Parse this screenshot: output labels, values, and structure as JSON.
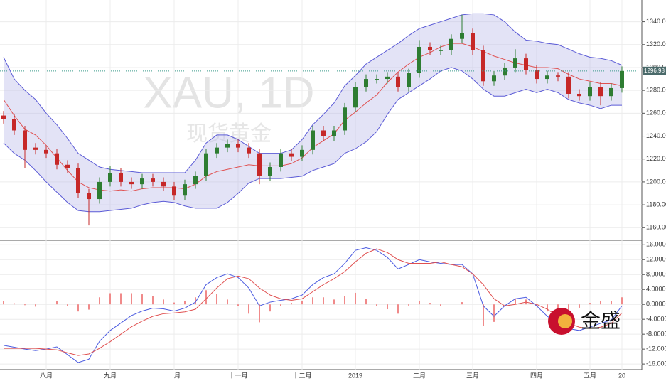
{
  "chart_data": [
    {
      "type": "candlestick",
      "watermark": "XAU, 1D",
      "watermark_sub": "现货黄金",
      "categories": [
        null,
        null,
        null,
        null,
        "八月",
        null,
        null,
        null,
        null,
        null,
        "九月",
        null,
        null,
        null,
        null,
        null,
        "十月",
        null,
        null,
        null,
        null,
        null,
        "十一月",
        null,
        null,
        null,
        null,
        null,
        "十二月",
        null,
        null,
        null,
        null,
        "2019",
        null,
        null,
        null,
        null,
        null,
        "二月",
        null,
        null,
        null,
        null,
        "三月",
        null,
        null,
        null,
        null,
        null,
        "四月",
        null,
        null,
        null,
        null,
        "五月",
        null,
        null,
        "20"
      ],
      "open": [
        1258,
        1255,
        1245,
        1230,
        1228,
        1225,
        1215,
        1212,
        1190,
        1185,
        1200,
        1208,
        1200,
        1198,
        1203,
        1200,
        1196,
        1188,
        1198,
        1205,
        1225,
        1230,
        1233,
        1230,
        1225,
        1205,
        1213,
        1225,
        1222,
        1228,
        1245,
        1240,
        1245,
        1265,
        1283,
        1290,
        1290,
        1292,
        1283,
        1295,
        1318,
        1315,
        1315,
        1325,
        1330,
        1315,
        1288,
        1293,
        1300,
        1308,
        1298,
        1290,
        1293,
        1292,
        1277,
        1275,
        1283,
        1275,
        1282
      ],
      "high": [
        1262,
        1259,
        1249,
        1234,
        1232,
        1229,
        1219,
        1216,
        1194,
        1204,
        1214,
        1212,
        1204,
        1207,
        1207,
        1204,
        1200,
        1202,
        1209,
        1229,
        1234,
        1237,
        1237,
        1234,
        1229,
        1217,
        1229,
        1229,
        1232,
        1249,
        1249,
        1249,
        1269,
        1287,
        1294,
        1294,
        1296,
        1296,
        1299,
        1324,
        1322,
        1319,
        1329,
        1346,
        1334,
        1319,
        1297,
        1304,
        1316,
        1312,
        1302,
        1297,
        1296,
        1296,
        1281,
        1287,
        1287,
        1286,
        1301
      ],
      "low": [
        1251,
        1241,
        1212,
        1224,
        1221,
        1211,
        1208,
        1186,
        1162,
        1181,
        1196,
        1196,
        1194,
        1194,
        1196,
        1192,
        1184,
        1184,
        1194,
        1201,
        1221,
        1226,
        1226,
        1221,
        1198,
        1201,
        1209,
        1218,
        1218,
        1224,
        1236,
        1236,
        1241,
        1261,
        1279,
        1286,
        1286,
        1279,
        1279,
        1291,
        1311,
        1311,
        1311,
        1321,
        1311,
        1284,
        1284,
        1289,
        1296,
        1294,
        1286,
        1286,
        1288,
        1273,
        1271,
        1271,
        1267,
        1271,
        1278
      ],
      "close": [
        1255,
        1245,
        1228,
        1228,
        1225,
        1215,
        1212,
        1190,
        1185,
        1200,
        1208,
        1200,
        1198,
        1203,
        1200,
        1196,
        1188,
        1198,
        1205,
        1225,
        1230,
        1233,
        1230,
        1225,
        1205,
        1213,
        1225,
        1222,
        1228,
        1245,
        1240,
        1245,
        1265,
        1283,
        1290,
        1290,
        1292,
        1283,
        1295,
        1318,
        1315,
        1315,
        1325,
        1330,
        1315,
        1288,
        1293,
        1300,
        1308,
        1298,
        1290,
        1293,
        1292,
        1277,
        1275,
        1283,
        1275,
        1282,
        1297
      ],
      "up_color": "#2e7d32",
      "down_color": "#c62828",
      "bands": {
        "color": "#5b5bd6",
        "middle_color": "#e05050",
        "fill": "#b8b8e8",
        "upper": [
          1309,
          1290,
          1280,
          1272,
          1260,
          1250,
          1238,
          1225,
          1219,
          1213,
          1211,
          1210,
          1209,
          1208,
          1208,
          1208,
          1208,
          1208,
          1219,
          1234,
          1241,
          1241,
          1237,
          1231,
          1225,
          1225,
          1225,
          1228,
          1237,
          1250,
          1259,
          1269,
          1284,
          1293,
          1303,
          1309,
          1315,
          1321,
          1328,
          1334,
          1337,
          1340,
          1343,
          1346,
          1347,
          1347,
          1346,
          1340,
          1331,
          1324,
          1323,
          1321,
          1320,
          1316,
          1312,
          1309,
          1308,
          1306,
          1302
        ],
        "middle": [
          1272,
          1258,
          1246,
          1241,
          1232,
          1221,
          1210,
          1200,
          1195,
          1193,
          1192,
          1193,
          1192,
          1194,
          1195,
          1195,
          1195,
          1194,
          1198,
          1205,
          1209,
          1211,
          1213,
          1215,
          1214,
          1214,
          1214,
          1216,
          1221,
          1230,
          1236,
          1242,
          1254,
          1261,
          1269,
          1276,
          1287,
          1296,
          1303,
          1309,
          1313,
          1318,
          1321,
          1321,
          1318,
          1314,
          1310,
          1307,
          1304,
          1302,
          1300,
          1300,
          1299,
          1294,
          1290,
          1288,
          1286,
          1286,
          1284
        ],
        "lower": [
          1234,
          1225,
          1219,
          1210,
          1200,
          1191,
          1182,
          1175,
          1174,
          1174,
          1175,
          1176,
          1177,
          1180,
          1182,
          1183,
          1182,
          1179,
          1177,
          1177,
          1177,
          1182,
          1190,
          1199,
          1203,
          1203,
          1203,
          1204,
          1205,
          1210,
          1213,
          1216,
          1225,
          1229,
          1235,
          1244,
          1259,
          1272,
          1278,
          1284,
          1290,
          1297,
          1300,
          1297,
          1290,
          1281,
          1275,
          1275,
          1278,
          1281,
          1278,
          1281,
          1278,
          1272,
          1269,
          1267,
          1264,
          1267,
          1267
        ]
      },
      "ylim": [
        1149,
        1359
      ],
      "yticks": [
        {
          "value": 1160,
          "label": "1160.00"
        },
        {
          "value": 1180,
          "label": "1180.00"
        },
        {
          "value": 1200,
          "label": "1200.00"
        },
        {
          "value": 1220,
          "label": "1220.00"
        },
        {
          "value": 1240,
          "label": "1240.00"
        },
        {
          "value": 1260,
          "label": "1260.00"
        },
        {
          "value": 1280,
          "label": "1280.00"
        },
        {
          "value": 1300,
          "label": "1300.00"
        },
        {
          "value": 1320,
          "label": "1320.00"
        },
        {
          "value": 1340,
          "label": "1340.00"
        }
      ],
      "last_price": {
        "value": 1296.98,
        "label": "1296.98"
      },
      "grid": true
    },
    {
      "type": "macd",
      "series": [
        {
          "color": "#4a5ae0",
          "values": [
            -11.0,
            -11.5,
            -12.0,
            -12.4,
            -12.0,
            -11.4,
            -13.5,
            -15.6,
            -14.7,
            -9.9,
            -7.0,
            -5.0,
            -3.0,
            -1.8,
            -1.0,
            -1.2,
            -1.8,
            -1.0,
            0.6,
            5.3,
            7.2,
            8.2,
            7.2,
            4.4,
            -0.4,
            0.6,
            1.1,
            1.5,
            2.5,
            5.3,
            7.2,
            8.2,
            11.0,
            14.5,
            15.2,
            14.5,
            12.6,
            9.5,
            10.7,
            12.0,
            11.4,
            11.0,
            10.7,
            10.7,
            8.2,
            -0.4,
            -3.2,
            -0.4,
            1.5,
            1.9,
            -0.4,
            -3.2,
            -5.1,
            -6.5,
            -7.0,
            -6.1,
            -5.1,
            -4.2,
            -0.4
          ]
        },
        {
          "color": "#e05050",
          "values": [
            -11.8,
            -11.8,
            -11.8,
            -11.8,
            -12.0,
            -12.2,
            -13.0,
            -13.7,
            -13.3,
            -11.8,
            -10.0,
            -8.0,
            -6.0,
            -4.5,
            -3.2,
            -2.5,
            -2.3,
            -2.0,
            -1.3,
            1.5,
            4.4,
            6.9,
            7.6,
            6.9,
            4.4,
            2.5,
            1.5,
            1.1,
            1.5,
            3.4,
            5.3,
            6.9,
            8.8,
            11.4,
            13.7,
            14.9,
            13.9,
            12.0,
            11.0,
            11.0,
            11.0,
            11.4,
            10.7,
            10.1,
            8.2,
            5.3,
            1.5,
            -0.4,
            0.0,
            0.6,
            0.0,
            -1.3,
            -3.2,
            -5.1,
            -6.1,
            -6.5,
            -6.1,
            -5.1,
            -2.3
          ]
        }
      ],
      "histogram": {
        "color": "#f08a8a",
        "values": [
          0.8,
          0.3,
          -0.2,
          -0.6,
          0.0,
          0.8,
          -0.5,
          -1.9,
          -1.4,
          1.9,
          3.0,
          3.0,
          3.0,
          2.7,
          2.2,
          1.3,
          0.5,
          1.0,
          1.9,
          3.8,
          2.8,
          1.3,
          -0.4,
          -2.5,
          -4.8,
          -1.9,
          -0.4,
          0.4,
          1.0,
          1.9,
          1.9,
          1.3,
          2.2,
          3.1,
          1.5,
          -0.4,
          -1.3,
          -2.5,
          -0.3,
          1.0,
          0.4,
          -0.4,
          0.0,
          0.6,
          0.0,
          -5.7,
          -4.7,
          0.0,
          1.5,
          1.3,
          -0.4,
          -1.9,
          -1.9,
          -1.4,
          -0.9,
          0.4,
          1.0,
          0.9,
          1.9
        ]
      },
      "ylim": [
        -17.5,
        17.2
      ],
      "yticks": [
        {
          "value": 16,
          "label": "16.0000"
        },
        {
          "value": 12,
          "label": "12.0000"
        },
        {
          "value": 8,
          "label": "8.0000"
        },
        {
          "value": 4,
          "label": "4.0000"
        },
        {
          "value": 0,
          "label": "0.0000"
        },
        {
          "value": -4,
          "label": "-4.0000"
        },
        {
          "value": -8,
          "label": "-8.0000"
        },
        {
          "value": -12,
          "label": "-12.0000"
        },
        {
          "value": -16,
          "label": "-16.0000"
        }
      ],
      "grid": true
    }
  ],
  "logo": "金盛"
}
